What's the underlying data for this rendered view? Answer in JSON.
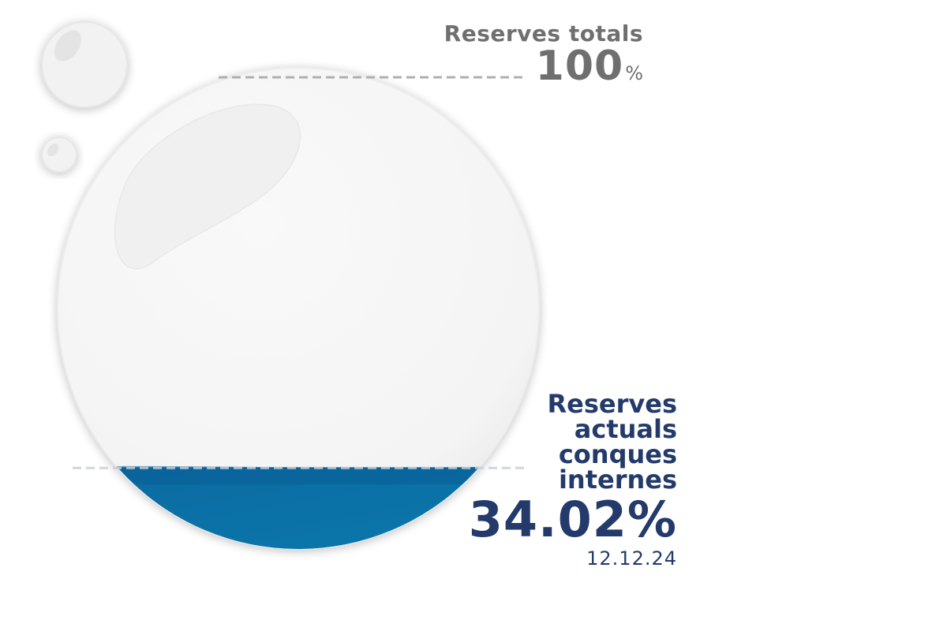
{
  "chart_data": {
    "type": "gauge",
    "title": "",
    "unit": "%",
    "ylim": [
      0,
      100
    ],
    "total": {
      "label": "Reserves totals",
      "value": "100",
      "unit": "%",
      "fraction": 1.0
    },
    "current": {
      "label_lines": [
        "Reserves",
        "actuals",
        "conques",
        "internes"
      ],
      "value": "34.02%",
      "fraction": 0.3402,
      "date": "12.12.24"
    },
    "colors": {
      "water": "#0d76aa",
      "water_surface": "#0a6299",
      "sphere": "#f7f7f7",
      "label_total": "#6f6f6f",
      "label_current": "#233a6a",
      "guide": "#b0b0b0"
    }
  }
}
